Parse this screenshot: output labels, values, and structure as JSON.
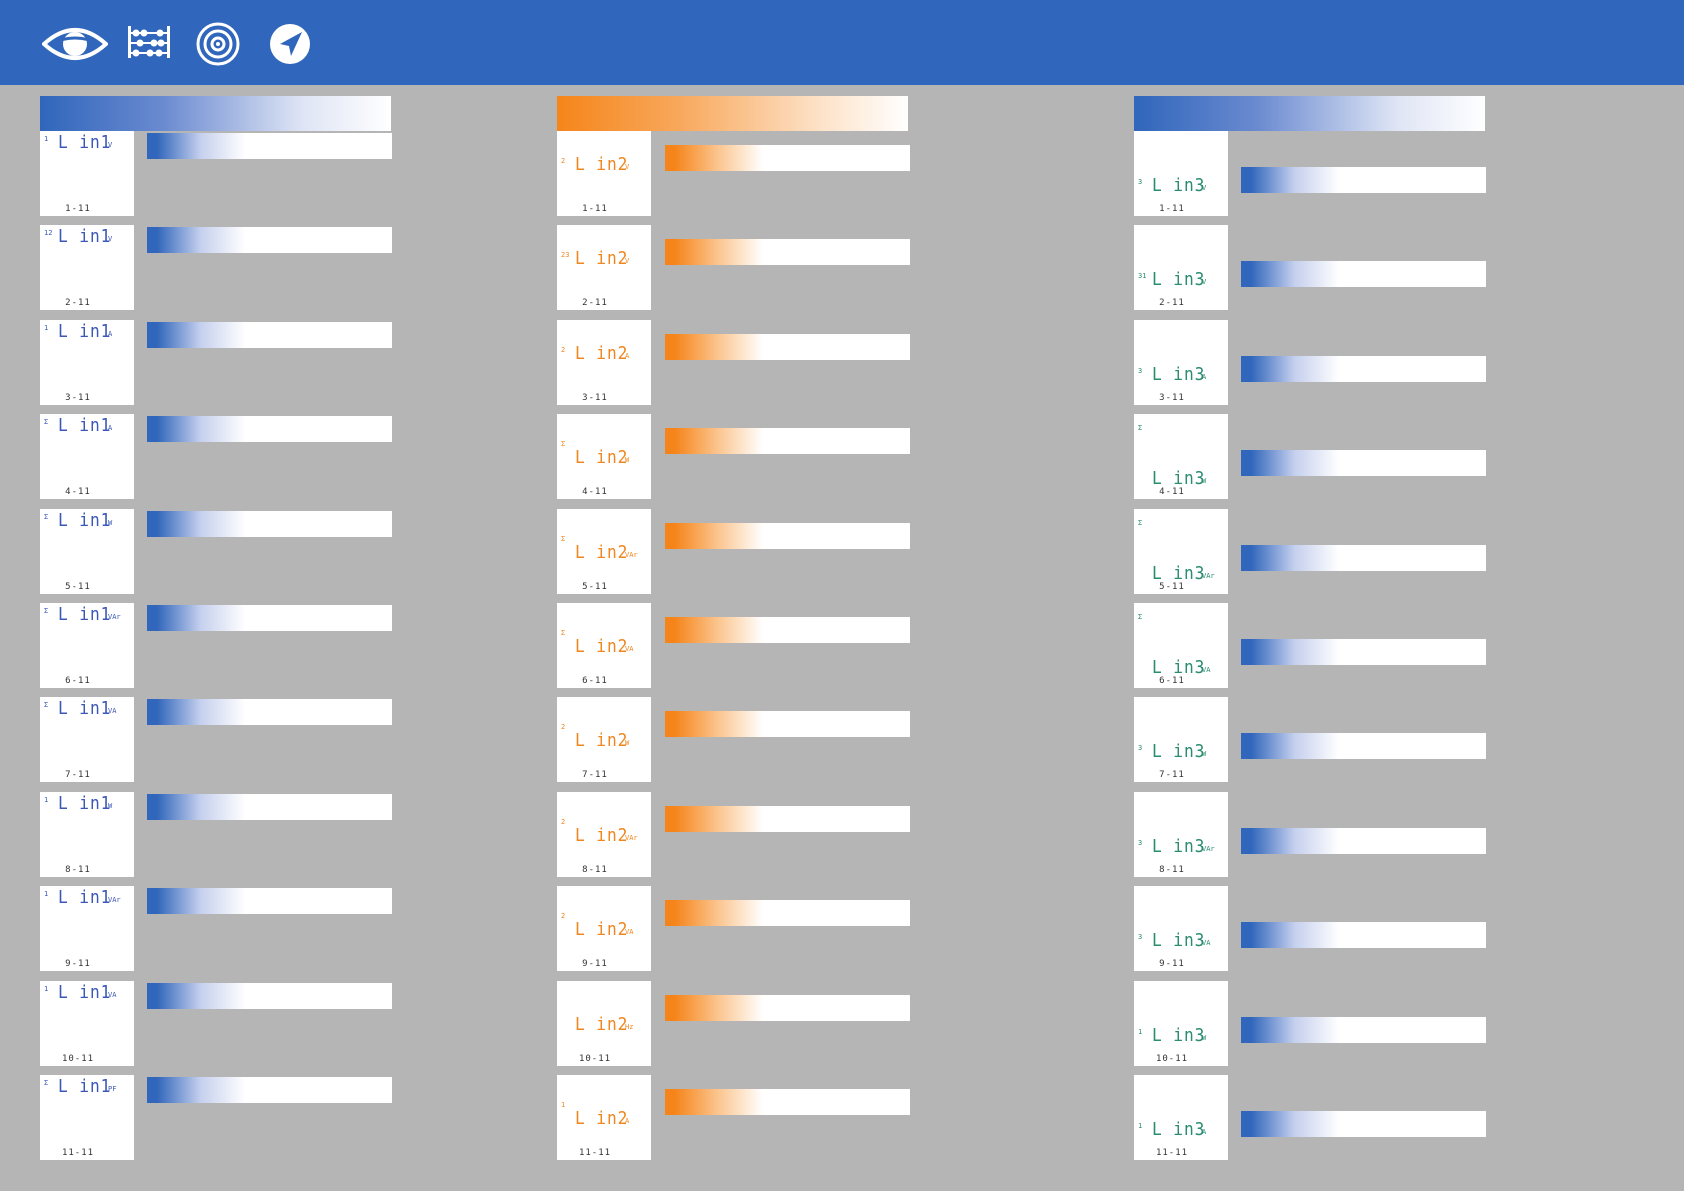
{
  "header": {
    "icons": [
      "eye-icon",
      "abacus-icon",
      "target-icon",
      "compass-arrow-icon"
    ],
    "background": "#3066bb"
  },
  "colors": {
    "line1": "#3b57b7",
    "line2": "#f0861e",
    "line3": "#2a8c70",
    "bar_blue": "#3066bb",
    "bar_orange": "#f5851a",
    "page_bg": "#b5b5b5"
  },
  "columns": [
    {
      "label": "L in1",
      "screens": [
        {
          "num": "1",
          "unit": "V",
          "index": "1-11"
        },
        {
          "num": "12",
          "unit": "V",
          "index": "2-11"
        },
        {
          "num": "1",
          "unit": "A",
          "index": "3-11"
        },
        {
          "num": "Σ",
          "unit": "A",
          "index": "4-11"
        },
        {
          "num": "Σ",
          "unit": "W",
          "index": "5-11"
        },
        {
          "num": "Σ",
          "unit": "VAr",
          "index": "6-11"
        },
        {
          "num": "Σ",
          "unit": "VA",
          "index": "7-11"
        },
        {
          "num": "1",
          "unit": "W",
          "index": "8-11"
        },
        {
          "num": "1",
          "unit": "VAr",
          "index": "9-11"
        },
        {
          "num": "1",
          "unit": "VA",
          "index": "10-11"
        },
        {
          "num": "Σ",
          "unit": "PF",
          "index": "11-11"
        }
      ]
    },
    {
      "label": "L in2",
      "screens": [
        {
          "num": "2",
          "unit": "V",
          "index": "1-11"
        },
        {
          "num": "23",
          "unit": "V",
          "index": "2-11"
        },
        {
          "num": "2",
          "unit": "A",
          "index": "3-11"
        },
        {
          "num": "Σ",
          "unit": "W",
          "index": "4-11"
        },
        {
          "num": "Σ",
          "unit": "VAr",
          "index": "5-11"
        },
        {
          "num": "Σ",
          "unit": "VA",
          "index": "6-11"
        },
        {
          "num": "2",
          "unit": "W",
          "index": "7-11"
        },
        {
          "num": "2",
          "unit": "VAr",
          "index": "8-11"
        },
        {
          "num": "2",
          "unit": "VA",
          "index": "9-11"
        },
        {
          "num": "",
          "unit": "Hz",
          "index": "10-11"
        },
        {
          "num": "1",
          "unit": "A",
          "index": "11-11"
        }
      ]
    },
    {
      "label": "L in3",
      "screens": [
        {
          "num": "3",
          "unit": "V",
          "index": "1-11"
        },
        {
          "num": "31",
          "unit": "V",
          "index": "2-11"
        },
        {
          "num": "3",
          "unit": "A",
          "index": "3-11"
        },
        {
          "num": "Σ",
          "unit": "W",
          "index": "4-11"
        },
        {
          "num": "Σ",
          "unit": "VAr",
          "index": "5-11"
        },
        {
          "num": "Σ",
          "unit": "VA",
          "index": "6-11"
        },
        {
          "num": "3",
          "unit": "W",
          "index": "7-11"
        },
        {
          "num": "3",
          "unit": "VAr",
          "index": "8-11"
        },
        {
          "num": "3",
          "unit": "VA",
          "index": "9-11"
        },
        {
          "num": "1",
          "unit": "W",
          "index": "10-11"
        },
        {
          "num": "1",
          "unit": "A",
          "index": "11-11"
        }
      ]
    }
  ]
}
